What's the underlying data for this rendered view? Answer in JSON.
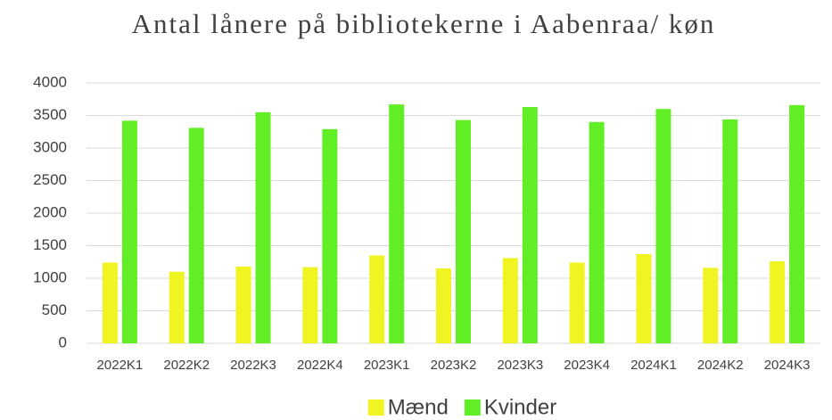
{
  "chart_data": {
    "type": "bar",
    "title": "Antal lånere på bibliotekerne i Aabenraa/ køn",
    "categories": [
      "2022K1",
      "2022K2",
      "2022K3",
      "2022K4",
      "2023K1",
      "2023K2",
      "2023K3",
      "2023K4",
      "2024K1",
      "2024K2",
      "2024K3"
    ],
    "series": [
      {
        "name": "Mænd",
        "color": "#f0f522",
        "values": [
          1240,
          1100,
          1180,
          1170,
          1350,
          1150,
          1310,
          1240,
          1370,
          1160,
          1260
        ]
      },
      {
        "name": "Kvinder",
        "color": "#62ee24",
        "values": [
          3420,
          3310,
          3550,
          3290,
          3670,
          3430,
          3630,
          3400,
          3600,
          3440,
          3660
        ]
      }
    ],
    "ylim": [
      0,
      4000
    ],
    "yticks": [
      0,
      500,
      1000,
      1500,
      2000,
      2500,
      3000,
      3500,
      4000
    ],
    "grid": true,
    "legend": "bottom"
  }
}
